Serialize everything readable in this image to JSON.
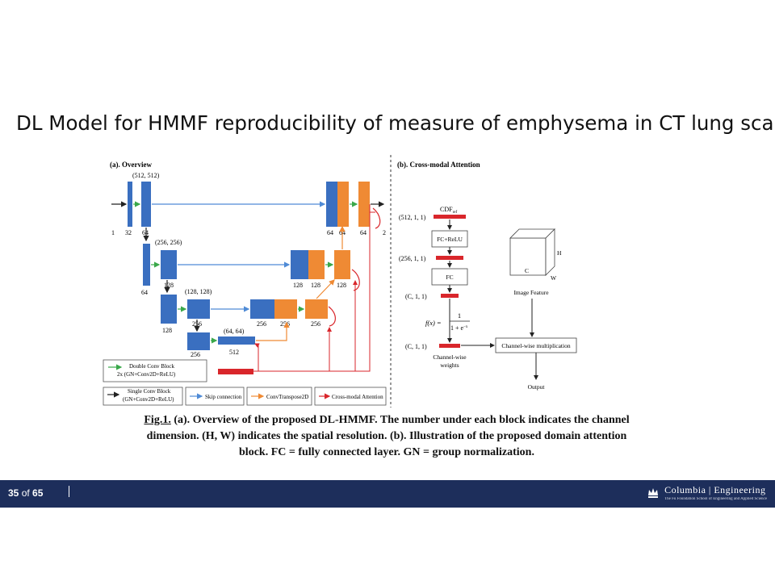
{
  "title": "DL Model for HMMF reproducibility of measure of emphysema in CT lung scans",
  "panel_a": {
    "heading": "(a). Overview",
    "res_labels": [
      "(512, 512)",
      "(256, 256)",
      "(128, 128)",
      "(64, 64)"
    ],
    "enc_labels": [
      "1",
      "32",
      "64",
      "64",
      "128",
      "128",
      "256",
      "256",
      "512"
    ],
    "dec_labels": [
      "64",
      "64",
      "64",
      "2",
      "128",
      "128",
      "128",
      "256",
      "256",
      "256"
    ],
    "legend": {
      "double_conv_line1": "Double Conv Block",
      "double_conv_line2": "2x (GN+Conv2D+ReLU)",
      "single_conv_line1": "Single Conv Block",
      "single_conv_line2": "(GN+Conv2D+ReLU)",
      "skip": "Skip connection",
      "conv_transpose": "ConvTranspose2D",
      "cross_modal": "Cross-modal Attention"
    }
  },
  "panel_b": {
    "heading": "(b). Cross-modal Attention",
    "cdf_main": "CDF",
    "cdf_sub": "ref",
    "shape_labels": [
      "(512, 1, 1)",
      "(256, 1, 1)",
      "(C, 1, 1)",
      "(C, 1, 1)"
    ],
    "fc_relu": "FC+ReLU",
    "fc": "FC",
    "formula_left": "f(x) =",
    "formula_num": "1",
    "formula_den": "1 + e",
    "formula_exp": "−x",
    "channel_weights_line1": "Channel-wise",
    "channel_weights_line2": "weights",
    "image_feature": "Image Feature",
    "cube_h": "H",
    "cube_w": "W",
    "cube_c": "C",
    "multiply": "Channel-wise multiplication",
    "output": "Output"
  },
  "caption": {
    "line1_bold": "Fig.1.",
    "line1": " (a). Overview of the proposed DL-HMMF. The number under each block indicates the channel",
    "line2": "dimension. (H, W) indicates the spatial resolution. (b). Illustration of the proposed domain attention",
    "line3": "block. FC = fully connected layer. GN = group normalization."
  },
  "footer": {
    "page_current": "35",
    "page_of": " of ",
    "page_total": "65",
    "brand": "Columbia | Engineering",
    "brand_sub": "The Fu Foundation School of Engineering and Applied Science"
  },
  "colors": {
    "blue": "#3a6fc0",
    "orange": "#ef8a34",
    "red": "#d9262b",
    "footer": "#1d2e5b",
    "skip": "#4f8bd6",
    "green": "#3aa84a"
  }
}
